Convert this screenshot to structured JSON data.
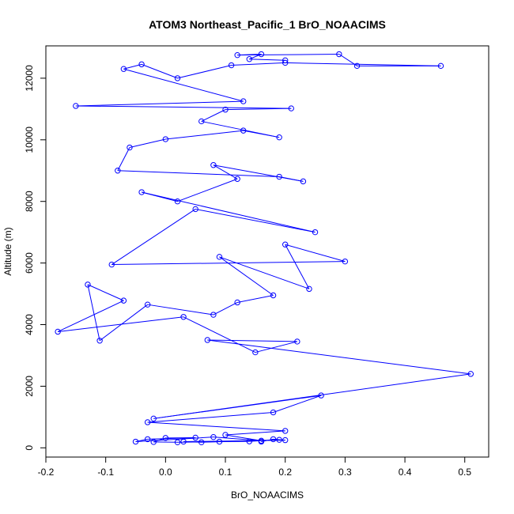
{
  "chart_data": {
    "type": "line",
    "title": "ATOM3 Northeast_Pacific_1 BrO_NOAACIMS",
    "xlabel": "BrO_NOAACIMS",
    "ylabel": "Altitude (m)",
    "xlim": [
      -0.2,
      0.54
    ],
    "ylim": [
      -300,
      13050
    ],
    "x_ticks": [
      -0.2,
      -0.1,
      0.0,
      0.1,
      0.2,
      0.3,
      0.4,
      0.5
    ],
    "x_tick_labels": [
      "-0.2",
      "-0.1",
      "0.0",
      "0.1",
      "0.2",
      "0.3",
      "0.4",
      "0.5"
    ],
    "y_ticks": [
      0,
      2000,
      4000,
      6000,
      8000,
      10000,
      12000
    ],
    "y_tick_labels": [
      "0",
      "2000",
      "4000",
      "6000",
      "8000",
      "10000",
      "12000"
    ],
    "grid": false,
    "legend": "none",
    "color": "#0000ff",
    "markers": "open-circle",
    "series": [
      {
        "points": [
          [
            0.16,
            200
          ],
          [
            0.18,
            280
          ],
          [
            0.2,
            250
          ],
          [
            0.03,
            200
          ],
          [
            0.06,
            180
          ],
          [
            0.09,
            200
          ],
          [
            0.19,
            260
          ],
          [
            0.14,
            210
          ],
          [
            0.02,
            180
          ],
          [
            -0.02,
            190
          ],
          [
            0.0,
            320
          ],
          [
            0.05,
            330
          ],
          [
            -0.03,
            280
          ],
          [
            -0.05,
            200
          ],
          [
            0.08,
            350
          ],
          [
            0.16,
            230
          ],
          [
            0.1,
            420
          ],
          [
            0.2,
            550
          ],
          [
            -0.03,
            830
          ],
          [
            0.18,
            1150
          ],
          [
            0.26,
            1700
          ],
          [
            -0.02,
            950
          ],
          [
            0.51,
            2400
          ],
          [
            0.07,
            3500
          ],
          [
            0.22,
            3450
          ],
          [
            0.15,
            3100
          ],
          [
            0.03,
            4250
          ],
          [
            -0.18,
            3770
          ],
          [
            -0.07,
            4780
          ],
          [
            -0.13,
            5300
          ],
          [
            -0.11,
            3480
          ],
          [
            -0.03,
            4650
          ],
          [
            0.08,
            4320
          ],
          [
            0.12,
            4720
          ],
          [
            0.18,
            4950
          ],
          [
            0.09,
            6200
          ],
          [
            0.24,
            5160
          ],
          [
            0.2,
            6600
          ],
          [
            0.3,
            6050
          ],
          [
            -0.09,
            5950
          ],
          [
            0.05,
            7750
          ],
          [
            0.25,
            7000
          ],
          [
            -0.04,
            8300
          ],
          [
            0.02,
            8000
          ],
          [
            0.12,
            8730
          ],
          [
            0.08,
            9180
          ],
          [
            0.23,
            8650
          ],
          [
            0.19,
            8800
          ],
          [
            -0.08,
            9000
          ],
          [
            -0.06,
            9750
          ],
          [
            0.0,
            10020
          ],
          [
            0.13,
            10300
          ],
          [
            0.19,
            10080
          ],
          [
            0.06,
            10600
          ],
          [
            0.1,
            10980
          ],
          [
            0.21,
            11020
          ],
          [
            -0.15,
            11100
          ],
          [
            0.13,
            11250
          ],
          [
            -0.07,
            12300
          ],
          [
            -0.04,
            12450
          ],
          [
            0.02,
            12000
          ],
          [
            0.11,
            12420
          ],
          [
            0.2,
            12500
          ],
          [
            0.46,
            12400
          ],
          [
            0.32,
            12400
          ],
          [
            0.29,
            12780
          ],
          [
            0.12,
            12750
          ],
          [
            0.16,
            12780
          ],
          [
            0.14,
            12620
          ],
          [
            0.2,
            12580
          ]
        ]
      }
    ]
  }
}
